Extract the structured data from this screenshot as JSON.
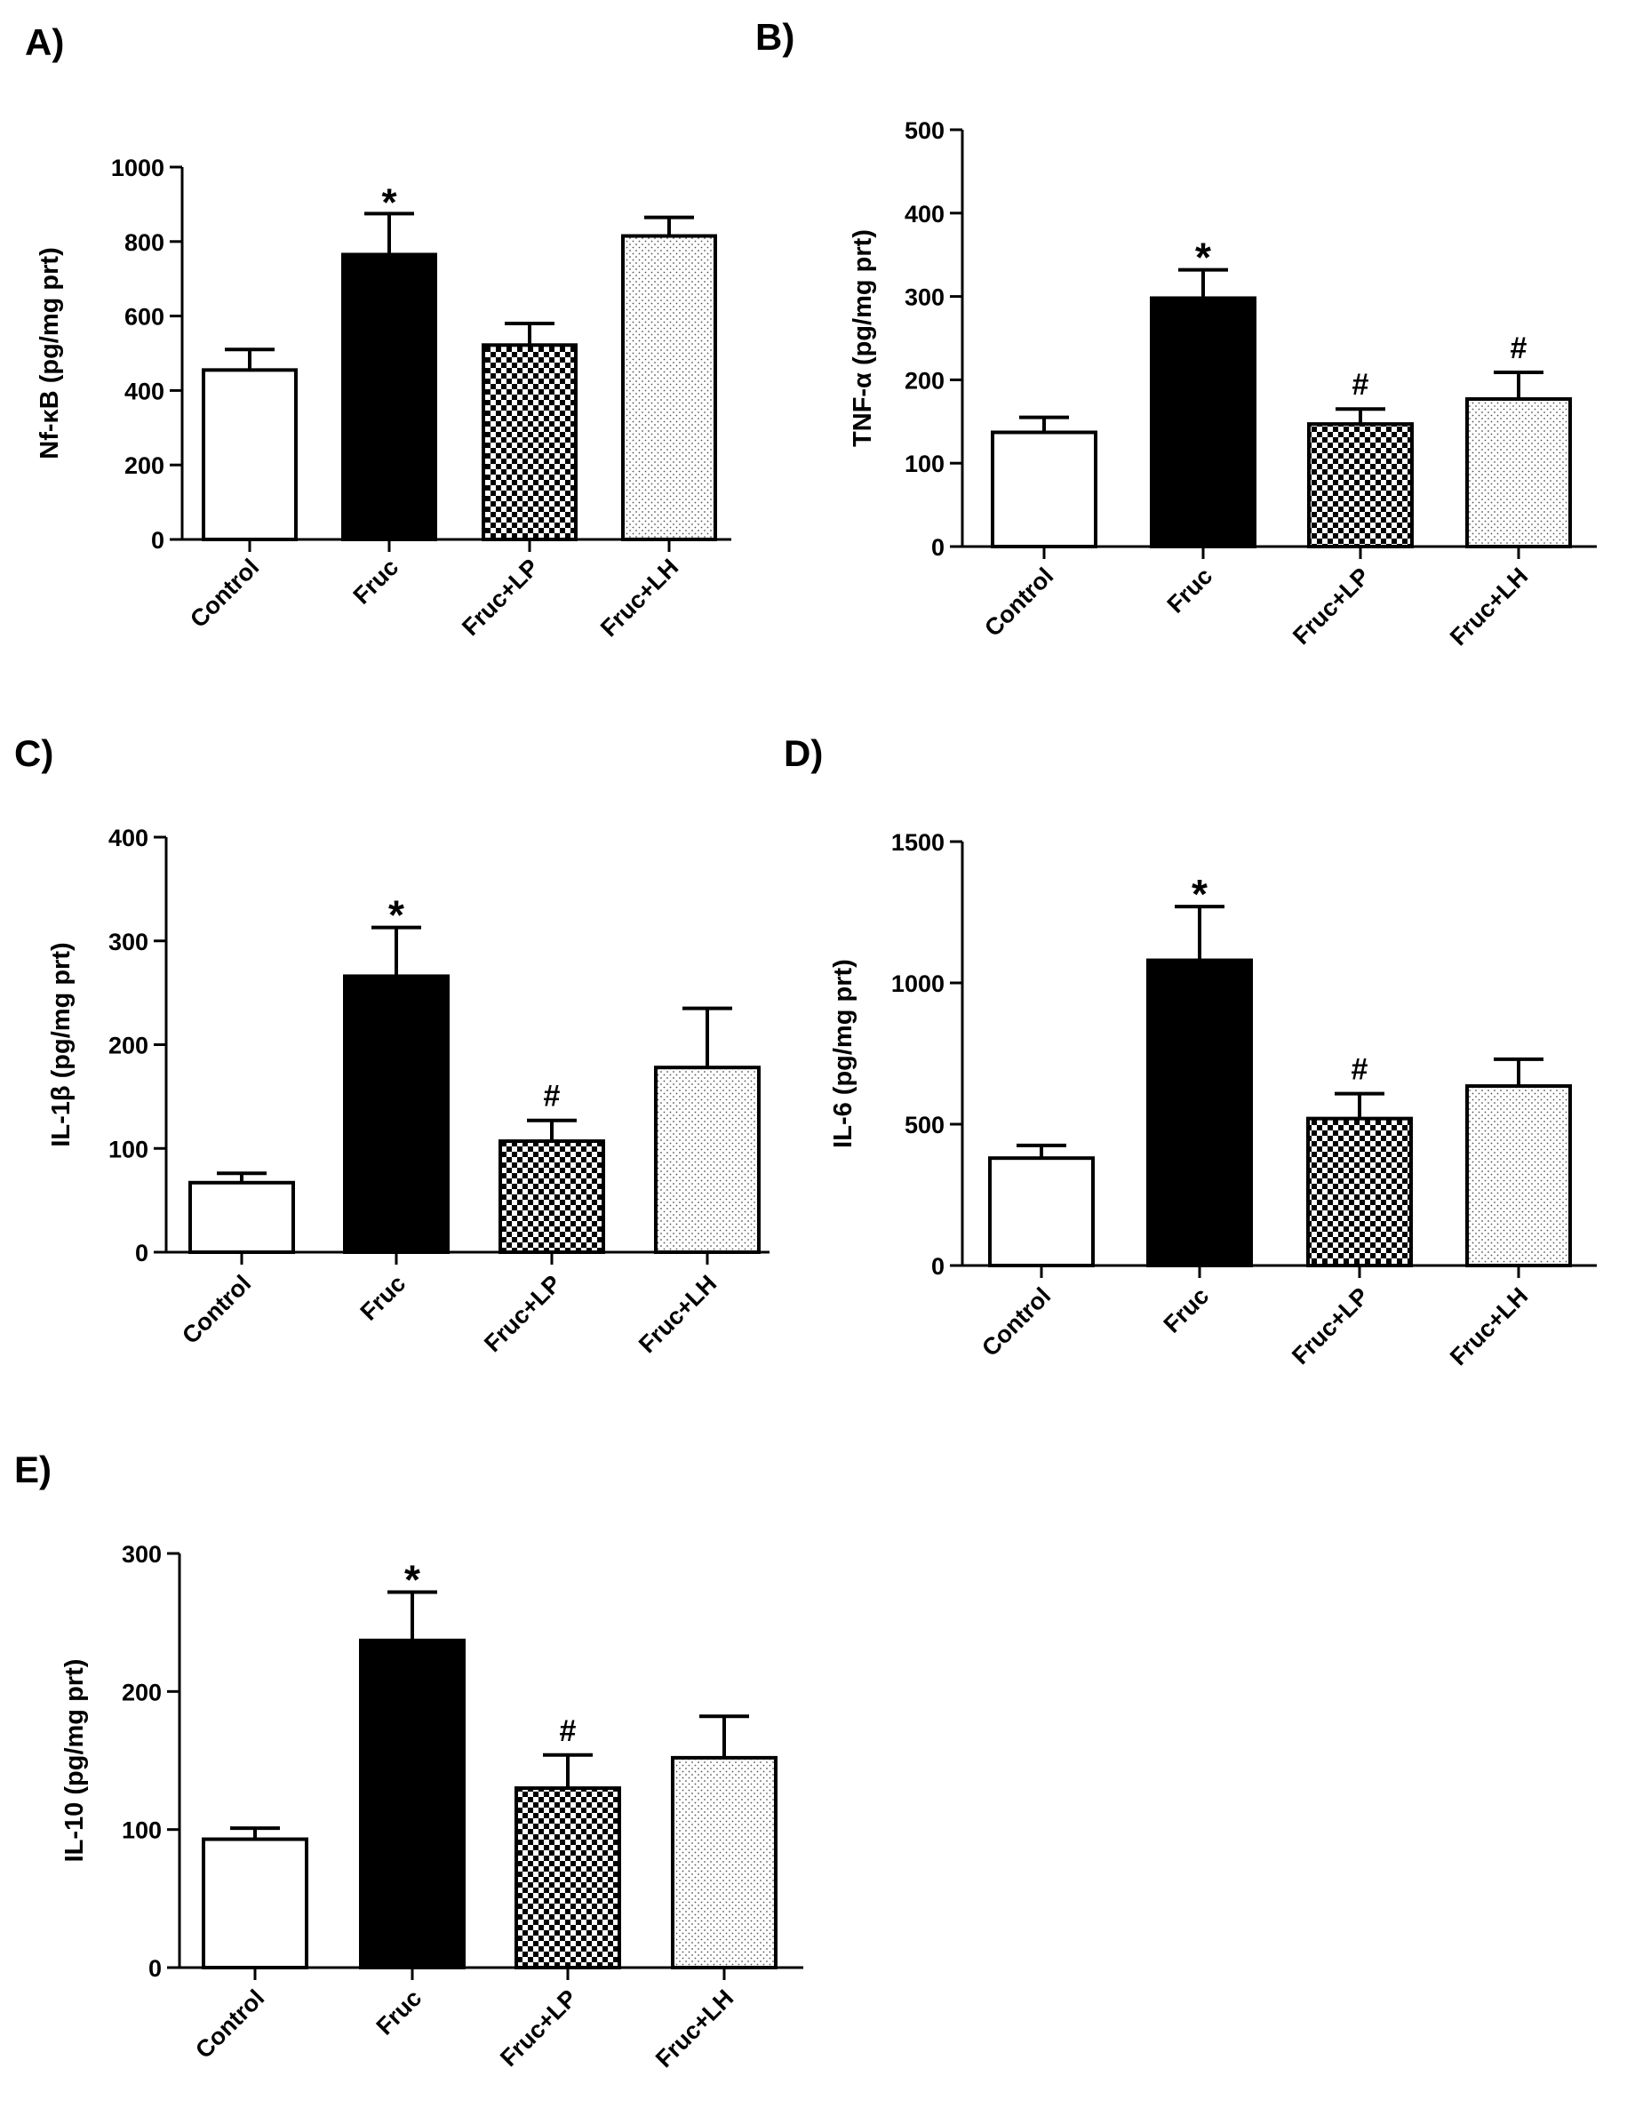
{
  "figure": {
    "category_labels": [
      "Control",
      "Fruc",
      "Fruc+LP",
      "Fruc+LH"
    ],
    "bar_fills": [
      "white",
      "black",
      "checker",
      "dotted"
    ]
  },
  "chart_data": [
    {
      "panel": "A)",
      "type": "bar",
      "ylabel": "Nf-κB (pg/mg prt)",
      "ylim": [
        0,
        1000
      ],
      "yticks": [
        0,
        200,
        400,
        600,
        800,
        1000
      ],
      "categories": [
        "Control",
        "Fruc",
        "Fruc+LP",
        "Fruc+LH"
      ],
      "values": [
        455,
        765,
        522,
        815
      ],
      "errors": [
        55,
        110,
        58,
        50
      ],
      "annotations": [
        "",
        "*",
        "",
        ""
      ]
    },
    {
      "panel": "B)",
      "type": "bar",
      "ylabel": "TNF-α (pg/mg prt)",
      "ylim": [
        0,
        500
      ],
      "yticks": [
        0,
        100,
        200,
        300,
        400,
        500
      ],
      "categories": [
        "Control",
        "Fruc",
        "Fruc+LP",
        "Fruc+LH"
      ],
      "values": [
        137,
        298,
        147,
        177
      ],
      "errors": [
        18,
        34,
        18,
        32
      ],
      "annotations": [
        "",
        "*",
        "#",
        "#"
      ]
    },
    {
      "panel": "C)",
      "type": "bar",
      "ylabel": "IL-1β (pg/mg prt)",
      "ylim": [
        0,
        400
      ],
      "yticks": [
        0,
        100,
        200,
        300,
        400
      ],
      "categories": [
        "Control",
        "Fruc",
        "Fruc+LP",
        "Fruc+LH"
      ],
      "values": [
        67,
        266,
        107,
        178
      ],
      "errors": [
        9,
        47,
        20,
        57
      ],
      "annotations": [
        "",
        "*",
        "#",
        ""
      ]
    },
    {
      "panel": "D)",
      "type": "bar",
      "ylabel": "IL-6 (pg/mg prt)",
      "ylim": [
        0,
        1500
      ],
      "yticks": [
        0,
        500,
        1000,
        1500
      ],
      "categories": [
        "Control",
        "Fruc",
        "Fruc+LP",
        "Fruc+LH"
      ],
      "values": [
        380,
        1080,
        520,
        635
      ],
      "errors": [
        45,
        190,
        88,
        95
      ],
      "annotations": [
        "",
        "*",
        "#",
        ""
      ]
    },
    {
      "panel": "E)",
      "type": "bar",
      "ylabel": "IL-10 (pg/mg prt)",
      "ylim": [
        0,
        300
      ],
      "yticks": [
        0,
        100,
        200,
        300
      ],
      "categories": [
        "Control",
        "Fruc",
        "Fruc+LP",
        "Fruc+LH"
      ],
      "values": [
        93,
        237,
        130,
        152
      ],
      "errors": [
        8,
        35,
        24,
        30
      ],
      "annotations": [
        "",
        "*",
        "#",
        ""
      ]
    }
  ]
}
